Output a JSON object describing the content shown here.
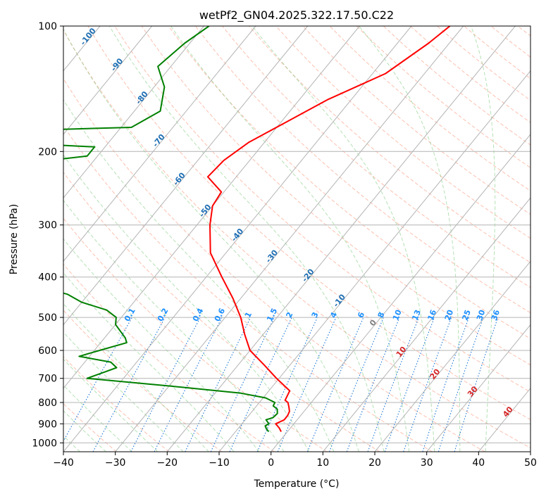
{
  "chart_data": {
    "type": "line",
    "title": "wetPf2_GN04.2025.322.17.50.C22",
    "xlabel": "Temperature (°C)",
    "ylabel": "Pressure (hPa)",
    "xlim": [
      -40,
      50
    ],
    "ylim": [
      1050,
      100
    ],
    "yscale": "log",
    "skew": "skew-T / log-p",
    "x_ticks": [
      -40,
      -30,
      -20,
      -10,
      0,
      10,
      20,
      30,
      40,
      50
    ],
    "y_ticks": [
      100,
      200,
      300,
      400,
      500,
      600,
      700,
      800,
      900,
      1000
    ],
    "grid": true,
    "colors": {
      "temperature": "#ff0000",
      "dewpoint": "#008000",
      "isotherm": "#b4b4b4",
      "dry_adiabat": "#fa8c6e",
      "moist_adiabat": "#78c878",
      "mixing_ratio": "#1f77d4",
      "mixing_label": "#1e90ff",
      "isotherm_label": "#1f6fb4",
      "wetbulb_label": "#d62728",
      "wetbulb_zero_label": "#808080"
    },
    "series": [
      {
        "kind": "temperature",
        "points": [
          [
            -32.6,
            100
          ],
          [
            -34,
            110
          ],
          [
            -37.5,
            130
          ],
          [
            -44.5,
            150
          ],
          [
            -49,
            170
          ],
          [
            -53,
            190
          ],
          [
            -55,
            210
          ],
          [
            -55.5,
            230
          ],
          [
            -50.5,
            250
          ],
          [
            -50,
            270
          ],
          [
            -47.5,
            300
          ],
          [
            -43,
            350
          ],
          [
            -37,
            400
          ],
          [
            -31.5,
            450
          ],
          [
            -27,
            500
          ],
          [
            -23.5,
            550
          ],
          [
            -20,
            600
          ],
          [
            -15,
            650
          ],
          [
            -10.5,
            700
          ],
          [
            -6,
            750
          ],
          [
            -5.4,
            790
          ],
          [
            -4.5,
            800
          ],
          [
            -3.6,
            820
          ],
          [
            -2.8,
            840
          ],
          [
            -2.5,
            860
          ],
          [
            -2.5,
            880
          ],
          [
            -3.5,
            900
          ],
          [
            -2.2,
            920
          ],
          [
            -1.2,
            940
          ]
        ]
      },
      {
        "kind": "dewpoint",
        "points": [
          [
            -79,
            100
          ],
          [
            -81,
            110
          ],
          [
            -82.5,
            125
          ],
          [
            -78,
            140
          ],
          [
            -75,
            160
          ],
          [
            -78,
            175
          ],
          [
            -112,
            180
          ],
          [
            -112,
            187
          ],
          [
            -82,
            195
          ],
          [
            -82,
            205
          ],
          [
            -101,
            220
          ],
          [
            -110,
            225
          ],
          [
            -112,
            240
          ],
          [
            -117,
            260
          ],
          [
            -113,
            265
          ],
          [
            -88,
            270
          ],
          [
            -86,
            280
          ],
          [
            -90,
            300
          ],
          [
            -94,
            335
          ],
          [
            -83,
            345
          ],
          [
            -76,
            360
          ],
          [
            -72,
            380
          ],
          [
            -71,
            400
          ],
          [
            -71.5,
            420
          ],
          [
            -64,
            440
          ],
          [
            -60,
            460
          ],
          [
            -54,
            480
          ],
          [
            -51,
            500
          ],
          [
            -50,
            520
          ],
          [
            -46,
            560
          ],
          [
            -45,
            575
          ],
          [
            -49,
            600
          ],
          [
            -52,
            620
          ],
          [
            -45,
            640
          ],
          [
            -43,
            660
          ],
          [
            -45,
            680
          ],
          [
            -47,
            700
          ],
          [
            -30,
            730
          ],
          [
            -15,
            760
          ],
          [
            -9.5,
            780
          ],
          [
            -7,
            800
          ],
          [
            -6.8,
            815
          ],
          [
            -5.5,
            830
          ],
          [
            -4.8,
            850
          ],
          [
            -5,
            870
          ],
          [
            -6,
            880
          ],
          [
            -4.8,
            900
          ],
          [
            -5.2,
            910
          ],
          [
            -4.5,
            925
          ],
          [
            -3.6,
            940
          ]
        ]
      }
    ],
    "isotherm_labels": [
      "-100",
      "-90",
      "-80",
      "-70",
      "-60",
      "-50",
      "-40",
      "-30",
      "-20",
      "-10"
    ],
    "mixing_ratio_labels": [
      "0.1",
      "0.2",
      "0.4",
      "0.6",
      "1",
      "1.5",
      "2",
      "3",
      "4",
      "6",
      "8",
      "10",
      "13",
      "16",
      "20",
      "25",
      "30",
      "36"
    ],
    "wetbulb_labels": [
      "0",
      "10",
      "20",
      "30",
      "40"
    ]
  }
}
